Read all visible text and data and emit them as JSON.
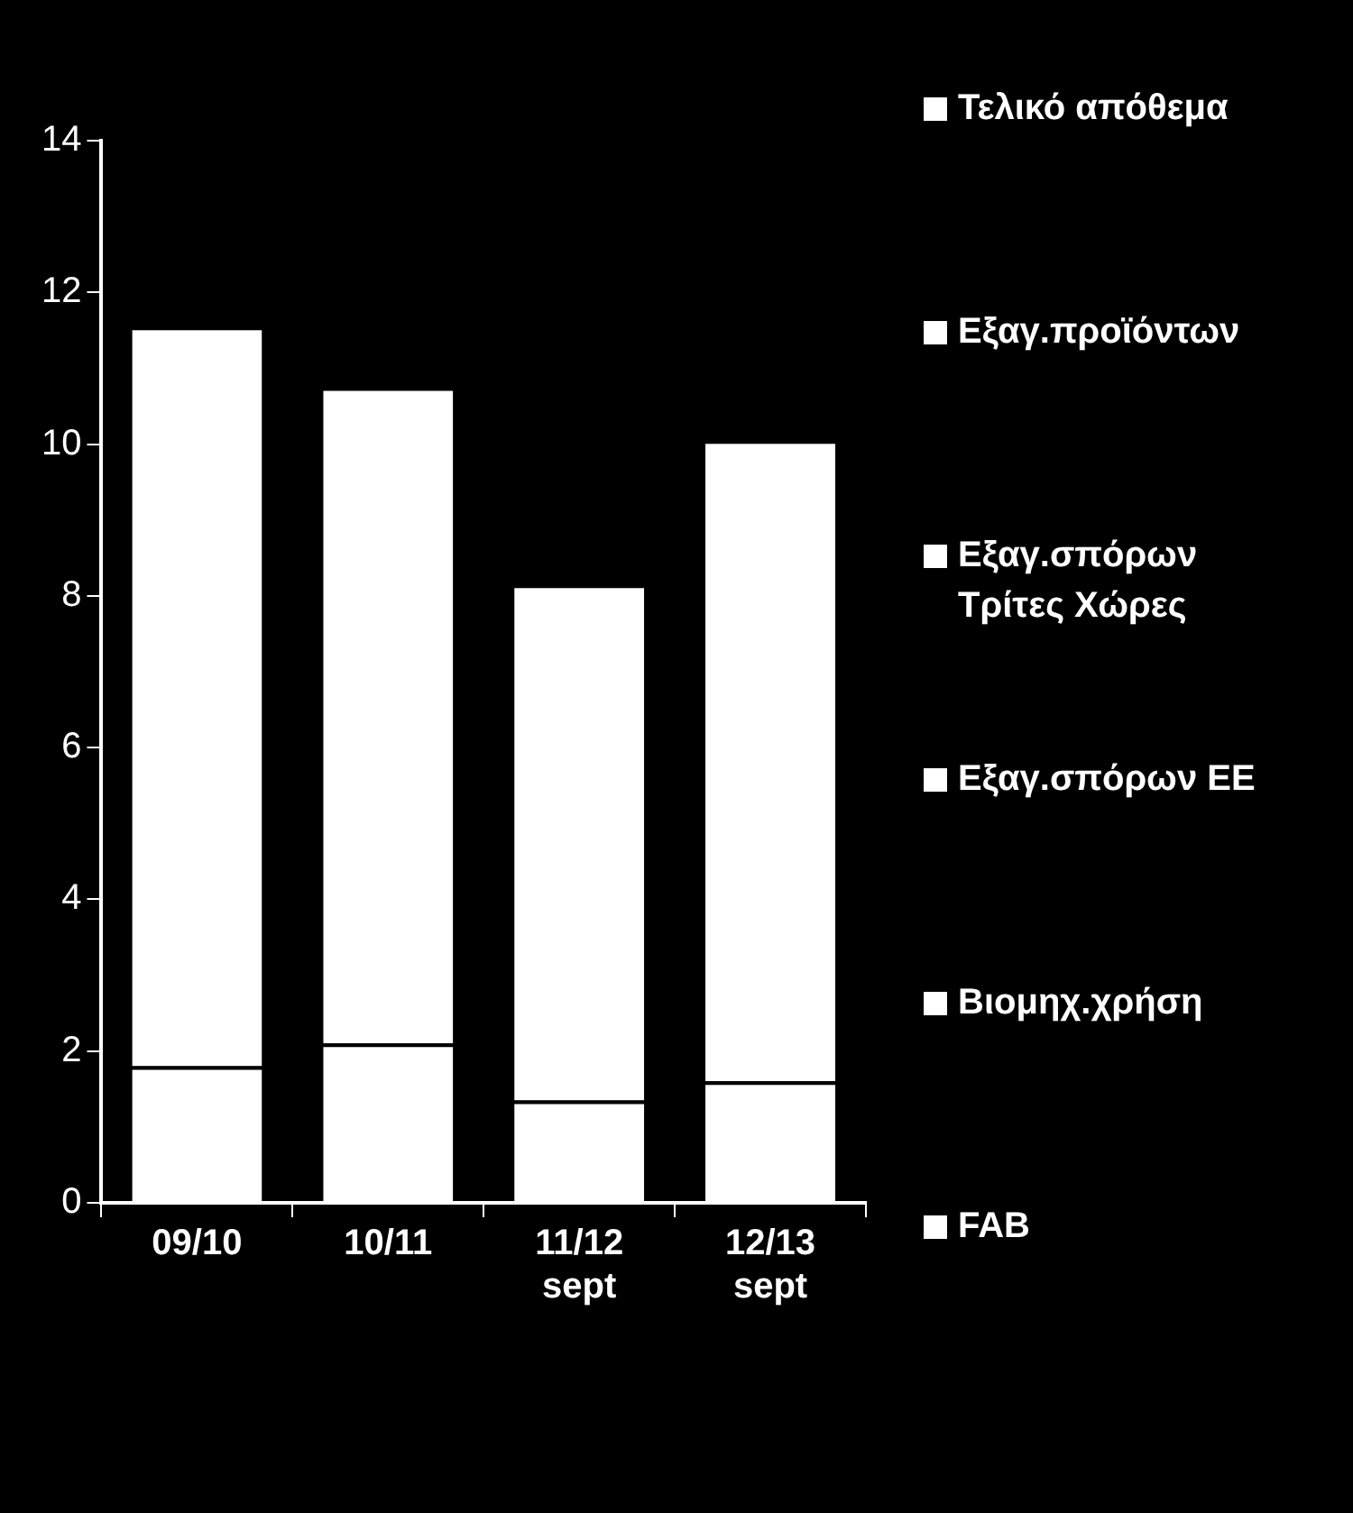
{
  "chart_data": {
    "type": "bar",
    "stacked": true,
    "categories": [
      "09/10",
      "10/11",
      "11/12 sept",
      "12/13 sept"
    ],
    "series": [
      {
        "name": "FAB",
        "color": "#ffffff",
        "values": [
          1.8,
          2.1,
          1.35,
          1.6
        ]
      },
      {
        "name": "Βιομηχ.χρήση",
        "color": "#ffffff",
        "values": [
          9.75,
          8.65,
          6.8,
          8.45
        ]
      },
      {
        "name": "Εξαγ.σπόρων ΕΕ",
        "color": "#ffffff",
        "values": [
          null,
          null,
          null,
          null
        ]
      },
      {
        "name": "Εξαγ.σπόρων Τρίτες Χώρες",
        "color": "#ffffff",
        "values": [
          null,
          null,
          null,
          null
        ]
      },
      {
        "name": "Εξαγ.προϊόντων",
        "color": "#ffffff",
        "values": [
          null,
          null,
          null,
          null
        ]
      },
      {
        "name": "Τελικό απόθεμα",
        "color": "#ffffff",
        "values": [
          null,
          null,
          null,
          null
        ]
      }
    ],
    "ylim": [
      0,
      14
    ],
    "yticks": [
      0,
      2,
      4,
      6,
      8,
      10,
      12,
      14
    ],
    "grid": false,
    "legend": "right"
  }
}
